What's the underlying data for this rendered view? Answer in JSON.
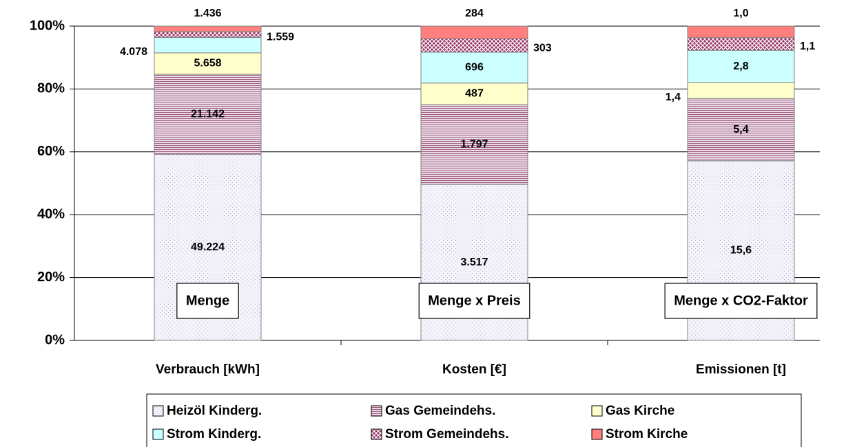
{
  "chart_data": {
    "type": "stacked100",
    "categories": [
      "Verbrauch [kWh]",
      "Kosten [€]",
      "Emissionen [t]"
    ],
    "annotations": [
      "Menge",
      "Menge x Preis",
      "Menge x CO2-Faktor"
    ],
    "series": [
      {
        "name": "Heizöl Kinderg.",
        "color": "#f4f2fa",
        "pattern": "dots",
        "values": [
          49224,
          3517,
          15.6
        ],
        "value_labels": [
          "49.224",
          "3.517",
          "15,6"
        ]
      },
      {
        "name": "Gas Gemeindehs.",
        "color": "#e9d9e6",
        "pattern": "hlines",
        "values": [
          21142,
          1797,
          5.4
        ],
        "value_labels": [
          "21.142",
          "1.797",
          "5,4"
        ]
      },
      {
        "name": "Gas Kirche",
        "color": "#ffffcc",
        "pattern": "none",
        "values": [
          5658,
          487,
          1.4
        ],
        "value_labels": [
          "5.658",
          "487",
          "1,4"
        ]
      },
      {
        "name": "Strom Kinderg.",
        "color": "#ccffff",
        "pattern": "none",
        "values": [
          4078,
          696,
          2.8
        ],
        "value_labels": [
          "4.078",
          "696",
          "2,8"
        ]
      },
      {
        "name": "Strom Gemeindehs.",
        "color": "#993366",
        "pattern": "cross",
        "values": [
          1559,
          303,
          1.1
        ],
        "value_labels": [
          "1.559",
          "303",
          "1,1"
        ]
      },
      {
        "name": "Strom Kirche",
        "color": "#ff7f7f",
        "pattern": "none",
        "values": [
          1436,
          284,
          1.0
        ],
        "value_labels": [
          "1.436",
          "284",
          "1,0"
        ]
      }
    ],
    "ylim": [
      0,
      100
    ],
    "yticks": [
      {
        "value": 0,
        "label": "0%"
      },
      {
        "value": 20,
        "label": "20%"
      },
      {
        "value": 40,
        "label": "40%"
      },
      {
        "value": 60,
        "label": "60%"
      },
      {
        "value": 80,
        "label": "80%"
      },
      {
        "value": 100,
        "label": "100%"
      }
    ],
    "grid": true,
    "legend": "bottom"
  }
}
